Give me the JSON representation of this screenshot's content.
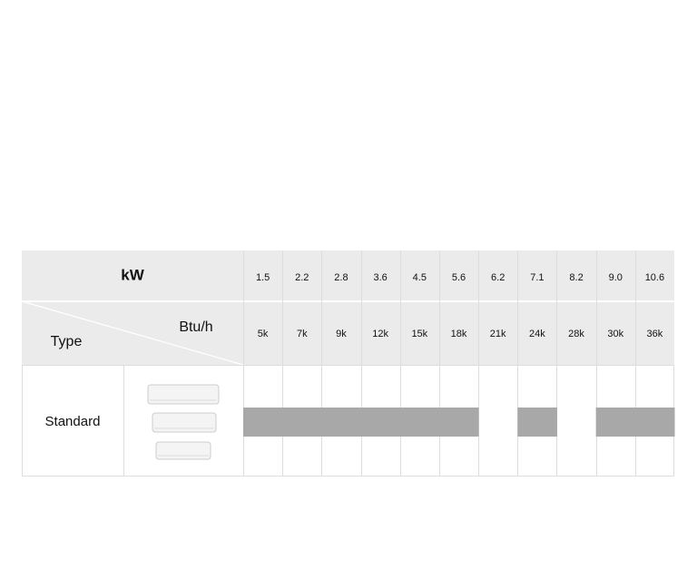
{
  "table": {
    "kw_label": "kW",
    "btu_label": "Btu/h",
    "type_label": "Type",
    "kw_values": [
      "1.5",
      "2.2",
      "2.8",
      "3.6",
      "4.5",
      "5.6",
      "6.2",
      "7.1",
      "8.2",
      "9.0",
      "10.6"
    ],
    "btu_values": [
      "5k",
      "7k",
      "9k",
      "12k",
      "15k",
      "18k",
      "21k",
      "24k",
      "28k",
      "30k",
      "36k"
    ],
    "rows": [
      {
        "label": "Standard",
        "available": [
          true,
          true,
          true,
          true,
          true,
          true,
          false,
          true,
          false,
          true,
          true
        ]
      }
    ]
  }
}
